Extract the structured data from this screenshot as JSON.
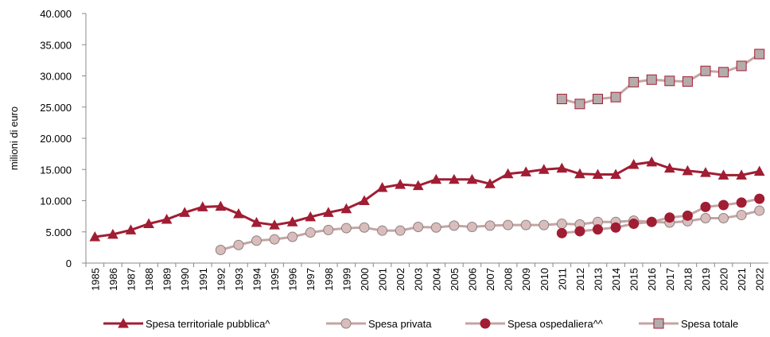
{
  "chart_data": {
    "type": "line",
    "y_label": "milioni di euro",
    "categories": [
      "1985",
      "1986",
      "1987",
      "1988",
      "1989",
      "1990",
      "1991",
      "1992",
      "1993",
      "1994",
      "1995",
      "1996",
      "1997",
      "1998",
      "1999",
      "2000",
      "2001",
      "2002",
      "2003",
      "2004",
      "2005",
      "2006",
      "2007",
      "2008",
      "2009",
      "2010",
      "2011",
      "2012",
      "2013",
      "2014",
      "2015",
      "2016",
      "2017",
      "2018",
      "2019",
      "2020",
      "2021",
      "2022"
    ],
    "ylim": [
      0,
      40000
    ],
    "yticks": [
      0,
      {
        "value": 5000,
        "label": "5.000"
      },
      {
        "value": 10000,
        "label": "10.000"
      },
      {
        "value": 15000,
        "label": "15.000"
      },
      {
        "value": 20000,
        "label": "20.000"
      },
      {
        "value": 25000,
        "label": "25.000"
      },
      {
        "value": 30000,
        "label": "30.000"
      },
      {
        "value": 35000,
        "label": "35.000"
      },
      {
        "value": 40000,
        "label": "40.000"
      }
    ],
    "series": [
      {
        "name": "Spesa territoriale pubblica^",
        "color": "#a11d33",
        "marker": "triangle",
        "marker_color": "#a11d33",
        "marker_edge": "#a11d33",
        "values": [
          4200,
          4600,
          5300,
          6300,
          7000,
          8100,
          9000,
          9100,
          7900,
          6500,
          6100,
          6600,
          7400,
          8100,
          8700,
          10000,
          12100,
          12600,
          12400,
          13400,
          13400,
          13400,
          12700,
          14300,
          14600,
          15000,
          15200,
          14300,
          14200,
          14200,
          15800,
          16200,
          15200,
          14800,
          14500,
          14100,
          14100,
          14700
        ]
      },
      {
        "name": "Spesa privata",
        "color": "#c4a4a4",
        "marker": "circle",
        "marker_color": "#d9bcbc",
        "marker_edge": "#8c8080",
        "values": [
          null,
          null,
          null,
          null,
          null,
          null,
          null,
          2100,
          2900,
          3600,
          3800,
          4200,
          4900,
          5300,
          5600,
          5700,
          5200,
          5200,
          5800,
          5700,
          6000,
          5800,
          6000,
          6100,
          6100,
          6100,
          6300,
          6200,
          6600,
          6600,
          6800,
          6600,
          6500,
          6700,
          7200,
          7200,
          7700,
          8400
        ]
      },
      {
        "name": "Spesa ospedaliera^^",
        "color": "#c4a4a4",
        "marker": "circle",
        "marker_color": "#a11d33",
        "marker_edge": "#a11d33",
        "values": [
          null,
          null,
          null,
          null,
          null,
          null,
          null,
          null,
          null,
          null,
          null,
          null,
          null,
          null,
          null,
          null,
          null,
          null,
          null,
          null,
          null,
          null,
          null,
          null,
          null,
          null,
          4800,
          5100,
          5400,
          5700,
          6300,
          6600,
          7300,
          7600,
          9000,
          9300,
          9700,
          10300
        ]
      },
      {
        "name": "Spesa totale",
        "color": "#c4a4a4",
        "marker": "square",
        "marker_color": "#b5abab",
        "marker_edge": "#a11d33",
        "values": [
          null,
          null,
          null,
          null,
          null,
          null,
          null,
          null,
          null,
          null,
          null,
          null,
          null,
          null,
          null,
          null,
          null,
          null,
          null,
          null,
          null,
          null,
          null,
          null,
          null,
          null,
          26300,
          25500,
          26300,
          26600,
          29000,
          29400,
          29200,
          29100,
          30800,
          30600,
          31600,
          33500
        ]
      }
    ]
  }
}
